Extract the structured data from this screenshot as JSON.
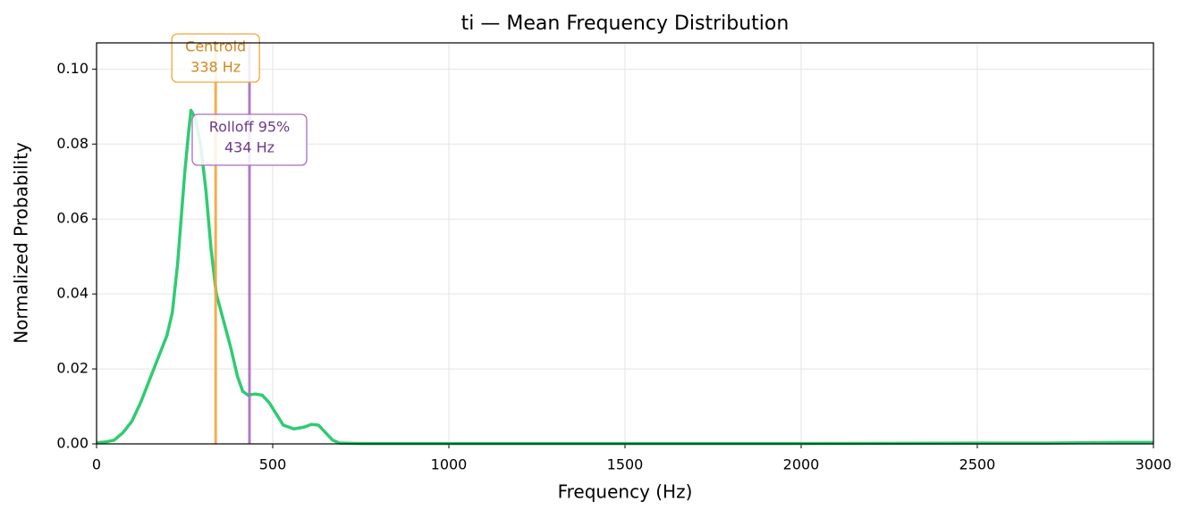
{
  "chart_data": {
    "type": "line",
    "title": "ti  —  Mean Frequency Distribution",
    "xlabel": "Frequency (Hz)",
    "ylabel": "Normalized Probability",
    "x": [
      0,
      25,
      50,
      75,
      100,
      125,
      150,
      175,
      200,
      215,
      230,
      250,
      260,
      268,
      280,
      295,
      310,
      325,
      340,
      360,
      380,
      400,
      415,
      430,
      450,
      470,
      490,
      510,
      530,
      560,
      590,
      610,
      630,
      650,
      670,
      690,
      750,
      1000,
      1500,
      2000,
      2500,
      2700,
      2900,
      3000
    ],
    "values": [
      0.0003,
      0.0005,
      0.001,
      0.003,
      0.006,
      0.011,
      0.017,
      0.023,
      0.029,
      0.035,
      0.048,
      0.072,
      0.082,
      0.089,
      0.087,
      0.08,
      0.068,
      0.052,
      0.04,
      0.033,
      0.026,
      0.018,
      0.014,
      0.013,
      0.0133,
      0.013,
      0.011,
      0.008,
      0.005,
      0.004,
      0.0045,
      0.0052,
      0.005,
      0.003,
      0.001,
      0.0002,
      0.0001,
      0.0001,
      0.0001,
      0.0001,
      0.0002,
      0.0002,
      0.0004,
      0.0004
    ],
    "color": "#2ecc71",
    "xlim": [
      0,
      3000
    ],
    "xticks": [
      0,
      500,
      1000,
      1500,
      2000,
      2500,
      3000
    ],
    "ylim": [
      0,
      0.107
    ],
    "yticks": [
      {
        "value": 0,
        "label": "0.00"
      },
      {
        "value": 0.02,
        "label": "0.02"
      },
      {
        "value": 0.04,
        "label": "0.04"
      },
      {
        "value": 0.06,
        "label": "0.06"
      },
      {
        "value": 0.08,
        "label": "0.08"
      },
      {
        "value": 0.1,
        "label": "0.10"
      }
    ],
    "grid": true,
    "annotations": [
      {
        "label": "Centroid",
        "x": 338,
        "value_label": "338 Hz",
        "color": "#f5a53a",
        "text_color": "#d4861a"
      },
      {
        "label": "Rolloff 95%",
        "x": 434,
        "value_label": "434 Hz",
        "color": "#a86cc1",
        "text_color": "#6c3a8c"
      }
    ]
  }
}
